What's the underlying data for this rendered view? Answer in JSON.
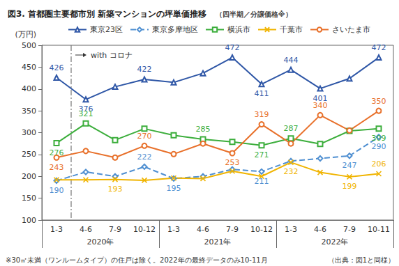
{
  "chart_data": {
    "type": "line",
    "title": "図3. 首都圏主要都市別 新築マンションの坪単価推移",
    "subtitle": "（四半期／分譲価格※）",
    "y_label": "(万円)",
    "categories": [
      "1-3",
      "4-6",
      "7-9",
      "10-12",
      "1-3",
      "4-6",
      "7-9",
      "10-12",
      "1-3",
      "4-6",
      "7-9",
      "10-11"
    ],
    "x_groups": [
      "2020年",
      "2021年",
      "2022年"
    ],
    "ylim": [
      100,
      500
    ],
    "yticks": [
      100,
      150,
      200,
      250,
      300,
      350,
      400,
      450,
      500
    ],
    "grid": false,
    "legend": "top",
    "data_labels": true,
    "series": [
      {
        "name": "東京23区",
        "color": "#2e56a6",
        "marker": "triangle",
        "line_style": "solid",
        "values": [
          426,
          376,
          405,
          422,
          415,
          436,
          472,
          411,
          444,
          401,
          424,
          472
        ],
        "value_labels": [
          "426",
          "376",
          null,
          "422",
          null,
          null,
          "472",
          "411",
          "444",
          "401",
          null,
          "472"
        ]
      },
      {
        "name": "東京多摩地区",
        "color": "#4f8fd1",
        "marker": "diamond",
        "line_style": "dashed",
        "values": [
          190,
          210,
          200,
          222,
          195,
          200,
          216,
          211,
          235,
          241,
          247,
          290
        ],
        "value_labels": [
          "190",
          null,
          null,
          "222",
          "195",
          null,
          null,
          "211",
          null,
          null,
          "247",
          "290"
        ]
      },
      {
        "name": "横浜市",
        "color": "#3cae3c",
        "marker": "square",
        "line_style": "solid",
        "values": [
          276,
          321,
          283,
          309,
          294,
          285,
          279,
          271,
          287,
          274,
          304,
          309
        ],
        "value_labels": [
          "276",
          "321",
          null,
          null,
          null,
          "285",
          null,
          "271",
          "287",
          null,
          null,
          "309"
        ]
      },
      {
        "name": "千葉市",
        "color": "#f0b400",
        "marker": "x",
        "line_style": "solid",
        "values": [
          192,
          192,
          193,
          191,
          196,
          195,
          212,
          200,
          232,
          209,
          199,
          206
        ],
        "value_labels": [
          null,
          null,
          "193",
          null,
          null,
          null,
          null,
          null,
          "232",
          null,
          "199",
          "206"
        ]
      },
      {
        "name": "さいたま市",
        "color": "#e8702a",
        "marker": "circle",
        "line_style": "solid",
        "values": [
          243,
          258,
          243,
          270,
          251,
          275,
          253,
          319,
          275,
          340,
          305,
          350
        ],
        "value_labels": [
          "243",
          null,
          null,
          "270",
          null,
          null,
          "253",
          "319",
          null,
          "340",
          null,
          "350"
        ]
      }
    ],
    "annotations": [
      {
        "text": "with コロナ",
        "x": 0.5
      }
    ],
    "notes": [
      "※30㎡未満（ワンルームタイプ）の住戸は除く。2022年の最終データのみ10-11月",
      "（出典：図1と同様）"
    ]
  }
}
